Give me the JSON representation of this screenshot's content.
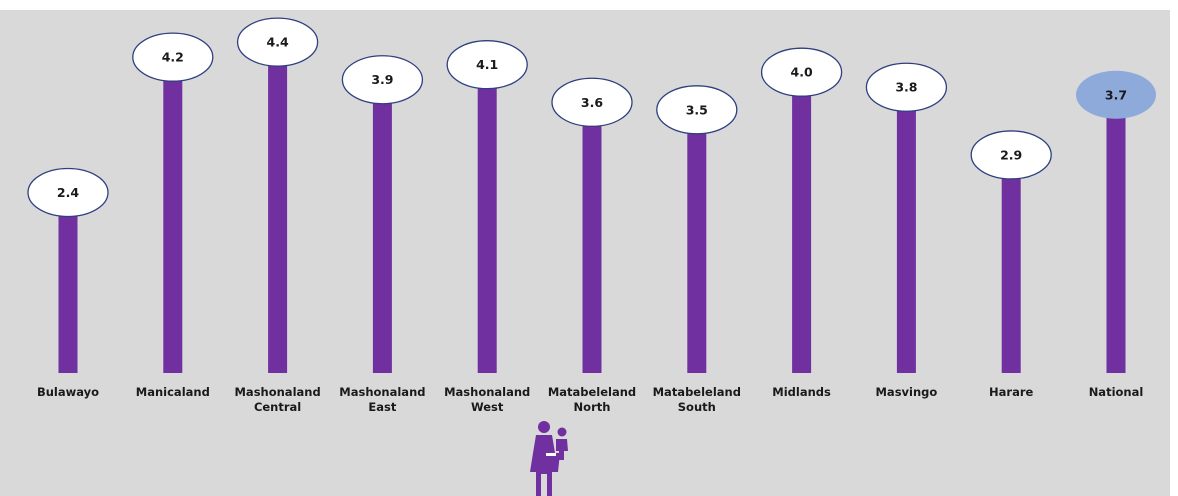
{
  "chart_data": {
    "type": "bar",
    "categories": [
      [
        "Bulawayo"
      ],
      [
        "Manicaland"
      ],
      [
        "Mashonaland",
        "Central"
      ],
      [
        "Mashonaland",
        "East"
      ],
      [
        "Mashonaland",
        "West"
      ],
      [
        "Matabeleland",
        "North"
      ],
      [
        "Matabeleland",
        "South"
      ],
      [
        "Midlands"
      ],
      [
        "Masvingo"
      ],
      [
        "Harare"
      ],
      [
        "National"
      ]
    ],
    "values": [
      2.4,
      4.2,
      4.4,
      3.9,
      4.1,
      3.6,
      3.5,
      4.0,
      3.8,
      2.9,
      3.7
    ],
    "value_labels": [
      "2.4",
      "4.2",
      "4.4",
      "3.9",
      "4.1",
      "3.6",
      "3.5",
      "4.0",
      "3.8",
      "2.9",
      "3.7"
    ],
    "highlighted_category": "National",
    "title": "",
    "xlabel": "",
    "ylabel": "",
    "ylim": [
      0,
      4.6
    ],
    "grid": false,
    "legend": "none",
    "colors": {
      "background": "#d9d9d9",
      "bar": "#7030a0",
      "bubble_fill": "#ffffff",
      "bubble_stroke": "#2f3f7f",
      "highlight_bubble_fill": "#8eaadb",
      "text": "#1a1a1a"
    },
    "icon": "mother-carrying-child-icon"
  }
}
